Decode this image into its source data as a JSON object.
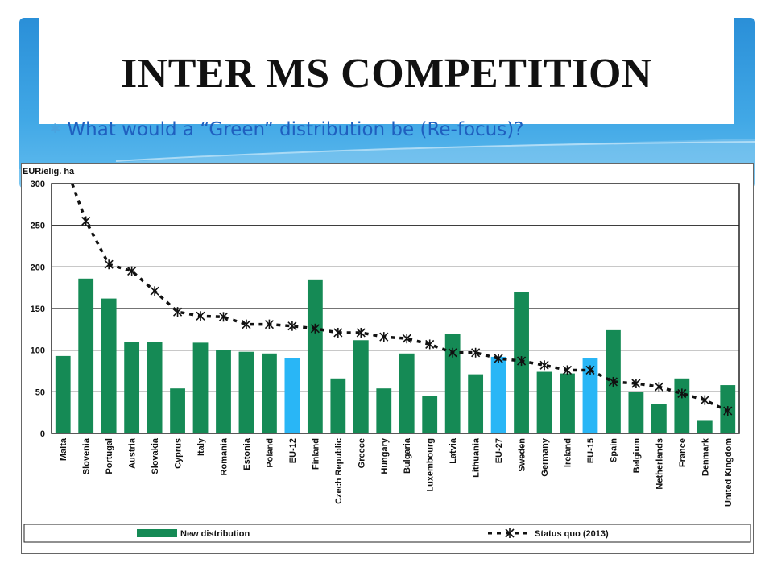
{
  "slide": {
    "title": "INTER MS COMPETITION",
    "bullet": "What would a “Green” distribution be (Re-focus)?"
  },
  "colors": {
    "bar_green": "#158a55",
    "bar_blue": "#29b6f6",
    "line": "#111111",
    "band": "#3aa2e2"
  },
  "chart_data": {
    "type": "bar",
    "ylabel": "EUR/elig. ha",
    "ylim": [
      0,
      300
    ],
    "yticks": [
      0,
      50,
      100,
      150,
      200,
      250,
      300
    ],
    "grid": true,
    "categories": [
      "Malta",
      "Slovenia",
      "Portugal",
      "Austria",
      "Slovakia",
      "Cyprus",
      "Italy",
      "Romania",
      "Estonia",
      "Poland",
      "EU-12",
      "Finland",
      "Czech Republic",
      "Greece",
      "Hungary",
      "Bulgaria",
      "Luxembourg",
      "Latvia",
      "Lithuania",
      "EU-27",
      "Sweden",
      "Germany",
      "Ireland",
      "EU-15",
      "Spain",
      "Belgium",
      "Netherlands",
      "France",
      "Denmark",
      "United Kingdom"
    ],
    "highlighted": [
      "EU-12",
      "EU-27",
      "EU-15"
    ],
    "series": [
      {
        "name": "New distribution",
        "kind": "bar",
        "values": [
          93,
          186,
          162,
          110,
          110,
          54,
          109,
          100,
          98,
          96,
          90,
          185,
          66,
          112,
          54,
          96,
          45,
          120,
          71,
          92,
          170,
          74,
          72,
          90,
          124,
          50,
          35,
          66,
          16,
          58
        ]
      },
      {
        "name": "Status quo (2013)",
        "kind": "line",
        "values": [
          330,
          255,
          203,
          195,
          171,
          146,
          141,
          140,
          131,
          131,
          129,
          126,
          121,
          121,
          116,
          114,
          107,
          97,
          97,
          90,
          87,
          82,
          76,
          76,
          62,
          60,
          56,
          48,
          40,
          27
        ]
      }
    ],
    "legend": {
      "position": "bottom"
    }
  }
}
